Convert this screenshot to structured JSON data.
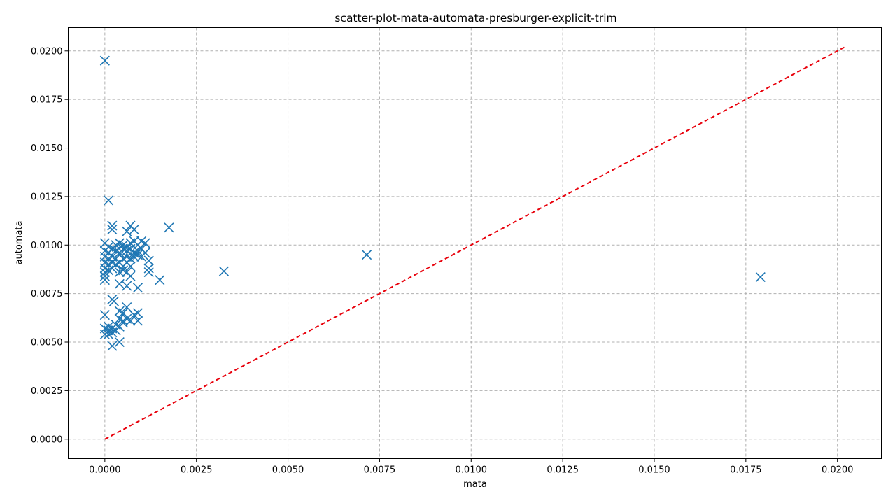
{
  "chart_data": {
    "type": "scatter",
    "title": "scatter-plot-mata-automata-presburger-explicit-trim",
    "xlabel": "mata",
    "ylabel": "automata",
    "xlim": [
      -0.001,
      0.0212
    ],
    "ylim": [
      -0.001,
      0.0212
    ],
    "xticks": [
      "0.0000",
      "0.0025",
      "0.0050",
      "0.0075",
      "0.0100",
      "0.0125",
      "0.0150",
      "0.0175",
      "0.0200"
    ],
    "yticks": [
      "0.0000",
      "0.0025",
      "0.0050",
      "0.0075",
      "0.0100",
      "0.0125",
      "0.0150",
      "0.0175",
      "0.0200"
    ],
    "grid": true,
    "marker": "x",
    "marker_color": "#1f77b4",
    "reference_line": {
      "style": "dashed",
      "color": "#e8000b",
      "from": [
        0.0,
        0.0
      ],
      "to": [
        0.0202,
        0.0202
      ]
    },
    "points": [
      [
        0.0,
        0.0195
      ],
      [
        0.0001,
        0.0123
      ],
      [
        0.00175,
        0.0109
      ],
      [
        0.00325,
        0.00865
      ],
      [
        0.00715,
        0.0095
      ],
      [
        0.0179,
        0.00835
      ],
      [
        0.0002,
        0.011
      ],
      [
        0.0002,
        0.0108
      ],
      [
        0.0006,
        0.0107
      ],
      [
        0.0007,
        0.011
      ],
      [
        0.0008,
        0.0108
      ],
      [
        0.0,
        0.0101
      ],
      [
        0.0001,
        0.0099
      ],
      [
        0.0003,
        0.01
      ],
      [
        0.0004,
        0.0101
      ],
      [
        0.0005,
        0.01
      ],
      [
        0.0006,
        0.0099
      ],
      [
        0.0007,
        0.0101
      ],
      [
        0.0008,
        0.0102
      ],
      [
        0.0009,
        0.01
      ],
      [
        0.001,
        0.0102
      ],
      [
        0.0011,
        0.0101
      ],
      [
        0.0,
        0.0097
      ],
      [
        0.0001,
        0.0096
      ],
      [
        0.0002,
        0.0098
      ],
      [
        0.0003,
        0.0097
      ],
      [
        0.0004,
        0.0096
      ],
      [
        0.0005,
        0.0098
      ],
      [
        0.0006,
        0.0097
      ],
      [
        0.0007,
        0.0098
      ],
      [
        0.0008,
        0.0096
      ],
      [
        0.0009,
        0.0097
      ],
      [
        0.001,
        0.0098
      ],
      [
        0.0011,
        0.0096
      ],
      [
        0.0,
        0.0094
      ],
      [
        0.0001,
        0.0093
      ],
      [
        0.0002,
        0.0094
      ],
      [
        0.0003,
        0.0093
      ],
      [
        0.0004,
        0.0095
      ],
      [
        0.0005,
        0.0093
      ],
      [
        0.0006,
        0.0094
      ],
      [
        0.0007,
        0.0093
      ],
      [
        0.0008,
        0.0094
      ],
      [
        0.0009,
        0.0095
      ],
      [
        0.001,
        0.0094
      ],
      [
        0.0,
        0.0091
      ],
      [
        0.0001,
        0.009
      ],
      [
        0.0002,
        0.0091
      ],
      [
        0.0003,
        0.009
      ],
      [
        0.0004,
        0.0091
      ],
      [
        0.0005,
        0.0089
      ],
      [
        0.0006,
        0.0091
      ],
      [
        0.0007,
        0.0089
      ],
      [
        0.0012,
        0.0092
      ],
      [
        0.0012,
        0.0088
      ],
      [
        0.0,
        0.0088
      ],
      [
        0.0,
        0.0086
      ],
      [
        0.0,
        0.0084
      ],
      [
        0.0,
        0.0082
      ],
      [
        0.0001,
        0.0087
      ],
      [
        0.0002,
        0.0088
      ],
      [
        0.0004,
        0.0086
      ],
      [
        0.0005,
        0.0087
      ],
      [
        0.0006,
        0.0086
      ],
      [
        0.0007,
        0.0084
      ],
      [
        0.0012,
        0.0086
      ],
      [
        0.0015,
        0.0082
      ],
      [
        0.0004,
        0.008
      ],
      [
        0.0006,
        0.0079
      ],
      [
        0.0009,
        0.0078
      ],
      [
        0.0002,
        0.0072
      ],
      [
        0.00025,
        0.0071
      ],
      [
        0.0,
        0.0064
      ],
      [
        0.0004,
        0.0066
      ],
      [
        0.0005,
        0.0065
      ],
      [
        0.0006,
        0.0068
      ],
      [
        0.0008,
        0.0064
      ],
      [
        0.0009,
        0.0065
      ],
      [
        0.0004,
        0.0062
      ],
      [
        0.0005,
        0.0061
      ],
      [
        0.0006,
        0.0062
      ],
      [
        0.0007,
        0.0061
      ],
      [
        0.0009,
        0.0061
      ],
      [
        0.0,
        0.0057
      ],
      [
        0.0001,
        0.0056
      ],
      [
        0.0001,
        0.0058
      ],
      [
        0.0002,
        0.0057
      ],
      [
        0.0003,
        0.0059
      ],
      [
        0.0003,
        0.0056
      ],
      [
        0.0004,
        0.0058
      ],
      [
        0.0005,
        0.006
      ],
      [
        0.0002,
        0.0055
      ],
      [
        0.0,
        0.0054
      ],
      [
        0.0001,
        0.0054
      ],
      [
        0.0004,
        0.005
      ],
      [
        0.0002,
        0.0048
      ]
    ]
  }
}
